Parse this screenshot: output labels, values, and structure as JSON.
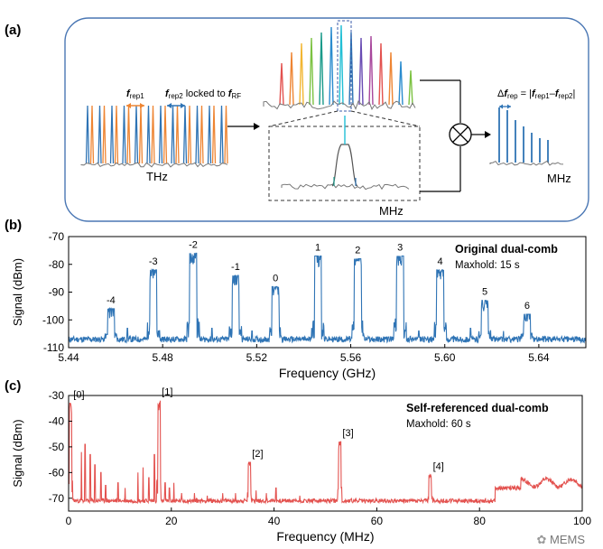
{
  "colors": {
    "blue": "#2f74b5",
    "red": "#e3524f",
    "orange": "#ee8533",
    "gray": "#777777",
    "frame": "#4a77b4",
    "cyan": "#22bfd5",
    "teal": "#1a9a8a"
  },
  "panel_a": {
    "label": "(a)",
    "frep1": "f",
    "frep1_sub": "rep1",
    "frep2": "f",
    "frep2_sub": "rep2",
    "locked_text": "locked to ",
    "frf": "f",
    "frf_sub": "RF",
    "thz": "THz",
    "mhz_zoom": "MHz",
    "delta_prefix": "Δ",
    "delta_f": "f",
    "delta_sub": "rep",
    "delta_eq": " = |",
    "delta_f1": "f",
    "delta_f1_sub": "rep1",
    "delta_minus": "–",
    "delta_f2": "f",
    "delta_f2_sub": "rep2",
    "delta_end": "|",
    "mhz_out": "MHz",
    "mixer_icon": "multiplier-circle-icon"
  },
  "chart_data": [
    {
      "type": "line",
      "panel_label": "(b)",
      "title": "Original dual-comb",
      "subtitle": "Maxhold: 15 s",
      "xlabel": "Frequency (GHz)",
      "ylabel": "Signal (dBm)",
      "xlim": [
        5.44,
        5.66
      ],
      "ylim": [
        -110,
        -70
      ],
      "xticks": [
        "5.44",
        "5.48",
        "5.52",
        "5.56",
        "5.60",
        "5.64"
      ],
      "xtick_values": [
        5.44,
        5.48,
        5.52,
        5.56,
        5.6,
        5.64
      ],
      "yticks": [
        "-70",
        "-80",
        "-90",
        "-100",
        "-110"
      ],
      "ytick_values": [
        -70,
        -80,
        -90,
        -100,
        -110
      ],
      "baseline": -107,
      "series": [
        {
          "values": [
            {
              "label": "-4",
              "x": 5.458,
              "y": -96
            },
            {
              "label": "-3",
              "x": 5.476,
              "y": -82
            },
            {
              "label": "-2",
              "x": 5.493,
              "y": -76
            },
            {
              "label": "-1",
              "x": 5.511,
              "y": -84
            },
            {
              "label": "0",
              "x": 5.528,
              "y": -88
            },
            {
              "label": "1",
              "x": 5.546,
              "y": -77
            },
            {
              "label": "2",
              "x": 5.563,
              "y": -78
            },
            {
              "label": "3",
              "x": 5.581,
              "y": -77
            },
            {
              "label": "4",
              "x": 5.598,
              "y": -82
            },
            {
              "label": "5",
              "x": 5.617,
              "y": -93
            },
            {
              "label": "6",
              "x": 5.635,
              "y": -98
            }
          ]
        }
      ]
    },
    {
      "type": "line",
      "panel_label": "(c)",
      "title": "Self-referenced dual-comb",
      "subtitle": "Maxhold: 60 s",
      "xlabel": "Frequency (MHz)",
      "ylabel": "Signal (dBm)",
      "xlim": [
        0,
        100
      ],
      "ylim": [
        -75,
        -30
      ],
      "xticks": [
        "0",
        "20",
        "40",
        "60",
        "80",
        "100"
      ],
      "xtick_values": [
        0,
        20,
        40,
        60,
        80,
        100
      ],
      "yticks": [
        "-30",
        "-40",
        "-50",
        "-60",
        "-70"
      ],
      "ytick_values": [
        -30,
        -40,
        -50,
        -60,
        -70
      ],
      "baseline": -71,
      "series": [
        {
          "values": [
            {
              "label": "[0]",
              "x": 0.4,
              "y": -33
            },
            {
              "label": "[1]",
              "x": 17.6,
              "y": -32
            },
            {
              "label": "[2]",
              "x": 35.2,
              "y": -56
            },
            {
              "label": "[3]",
              "x": 52.8,
              "y": -48
            },
            {
              "label": "[4]",
              "x": 70.4,
              "y": -61
            }
          ]
        }
      ]
    }
  ],
  "watermark": "MEMS"
}
